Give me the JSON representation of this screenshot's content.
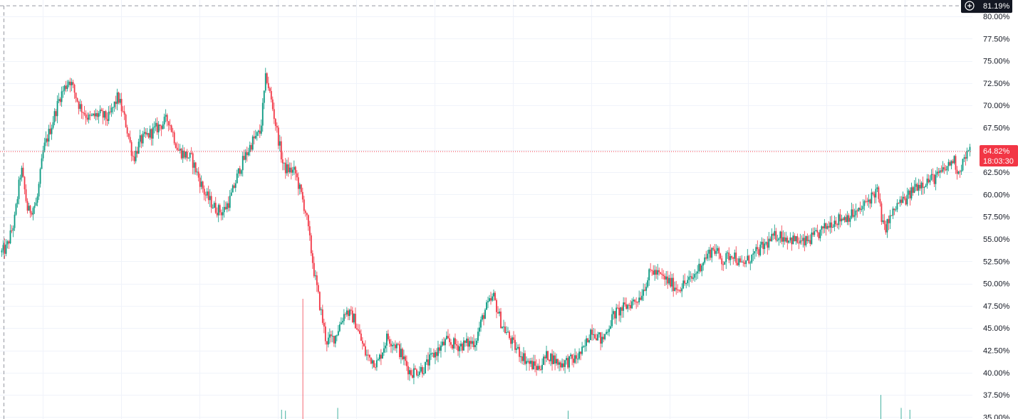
{
  "chart_data": {
    "type": "candlestick",
    "y_unit": "%",
    "ylim": [
      35,
      82
    ],
    "y_ticks": [
      "80.00%",
      "77.50%",
      "75.00%",
      "72.50%",
      "70.00%",
      "67.50%",
      "65.00%",
      "62.50%",
      "60.00%",
      "57.50%",
      "55.00%",
      "52.50%",
      "50.00%",
      "47.50%",
      "45.00%",
      "42.50%",
      "40.00%",
      "37.50%",
      "35.00%"
    ],
    "grid": true,
    "x_tick_labels": [],
    "price_path": [
      [
        0,
        53.5
      ],
      [
        0.5,
        54
      ],
      [
        1.3,
        57
      ],
      [
        2,
        63
      ],
      [
        2.7,
        58
      ],
      [
        3.6,
        59
      ],
      [
        4.3,
        65
      ],
      [
        5.2,
        68
      ],
      [
        6,
        71
      ],
      [
        7,
        73
      ],
      [
        8,
        70
      ],
      [
        9,
        68.5
      ],
      [
        10,
        69
      ],
      [
        11,
        68.5
      ],
      [
        12,
        71
      ],
      [
        12.8,
        68
      ],
      [
        13.6,
        64
      ],
      [
        14.3,
        66
      ],
      [
        15.5,
        67
      ],
      [
        17.2,
        68.5
      ],
      [
        18.2,
        65
      ],
      [
        19.6,
        64
      ],
      [
        21,
        60
      ],
      [
        22,
        58.5
      ],
      [
        22.8,
        58
      ],
      [
        23.6,
        59.5
      ],
      [
        24.6,
        63
      ],
      [
        25.9,
        66
      ],
      [
        26.7,
        67
      ],
      [
        27.3,
        73.5
      ],
      [
        28.1,
        69
      ],
      [
        29.1,
        63
      ],
      [
        30.3,
        62.5
      ],
      [
        31.4,
        58
      ],
      [
        32.3,
        51
      ],
      [
        33.5,
        43.5
      ],
      [
        34.4,
        44
      ],
      [
        35.5,
        47
      ],
      [
        36.4,
        46
      ],
      [
        37.6,
        42
      ],
      [
        38.8,
        41
      ],
      [
        39.8,
        44
      ],
      [
        40.8,
        43
      ],
      [
        42.2,
        40
      ],
      [
        43.6,
        40.5
      ],
      [
        44.6,
        42
      ],
      [
        45.9,
        43.5
      ],
      [
        47.2,
        43
      ],
      [
        48.9,
        43.5
      ],
      [
        49.9,
        47
      ],
      [
        50.8,
        48.5
      ],
      [
        51.6,
        45.5
      ],
      [
        52.9,
        43
      ],
      [
        54.5,
        41
      ],
      [
        55.4,
        40.5
      ],
      [
        56.4,
        42
      ],
      [
        57.6,
        41
      ],
      [
        59.2,
        41.5
      ],
      [
        60.1,
        42.5
      ],
      [
        60.9,
        45
      ],
      [
        62,
        43.5
      ],
      [
        63.2,
        46.5
      ],
      [
        64.6,
        47.5
      ],
      [
        65.9,
        48.5
      ],
      [
        67.1,
        51.5
      ],
      [
        68.5,
        50.5
      ],
      [
        69.8,
        49.5
      ],
      [
        71.3,
        50.5
      ],
      [
        72.4,
        52.5
      ],
      [
        73.5,
        54
      ],
      [
        74.5,
        52.5
      ],
      [
        75.5,
        53.5
      ],
      [
        76.3,
        52
      ],
      [
        77.5,
        53
      ],
      [
        78.5,
        54
      ],
      [
        80.1,
        55.5
      ],
      [
        81.5,
        55
      ],
      [
        82.8,
        54.5
      ],
      [
        84.3,
        55.5
      ],
      [
        85.8,
        57
      ],
      [
        87.2,
        57.5
      ],
      [
        88.5,
        58
      ],
      [
        89.6,
        59.5
      ],
      [
        90.4,
        60.5
      ],
      [
        91.1,
        56
      ],
      [
        91.6,
        57
      ],
      [
        92.6,
        59
      ],
      [
        93.5,
        59.5
      ],
      [
        94.4,
        61
      ],
      [
        95.5,
        61.5
      ],
      [
        96.6,
        62
      ],
      [
        97.6,
        63
      ],
      [
        98.3,
        64
      ],
      [
        98.8,
        62.5
      ],
      [
        99.4,
        64
      ],
      [
        100,
        64.82
      ]
    ],
    "volume_spikes": [
      [
        31.1,
        13
      ],
      [
        28.9,
        1
      ],
      [
        29.3,
        0.9
      ],
      [
        34.7,
        1.2
      ],
      [
        58.5,
        0.9
      ],
      [
        90.8,
        2.6
      ],
      [
        92.9,
        1.2
      ],
      [
        93.8,
        1
      ]
    ],
    "last_price": {
      "label": "64.82%",
      "value": 64.82,
      "countdown": "18:03:30",
      "color": "#f23645"
    },
    "top_marker": {
      "label": "81.19%",
      "value": 81.19,
      "icon": "plus-circle-icon"
    },
    "colors": {
      "up": "#089981",
      "down": "#f23645",
      "grid": "#f0f3fa",
      "axis_text": "#131722",
      "badge_dark": "#131722"
    }
  }
}
